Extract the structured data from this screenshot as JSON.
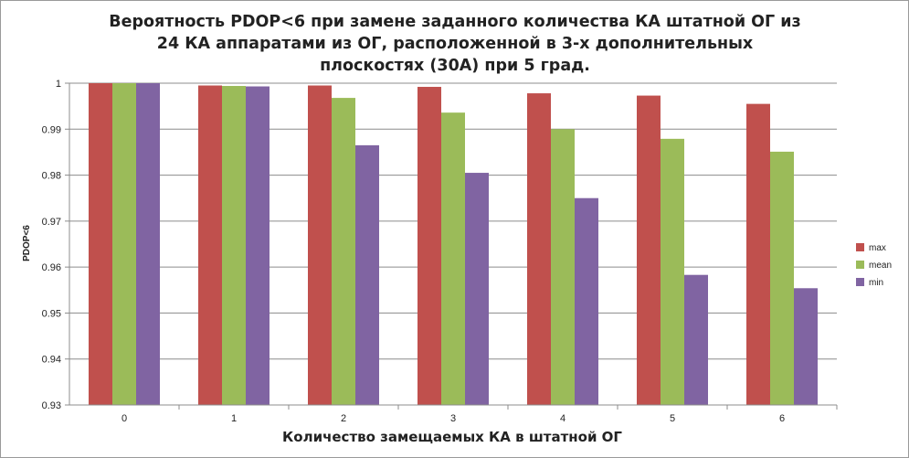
{
  "chart_data": {
    "type": "bar",
    "title_lines": [
      "Вероятность PDOP<6 при замене заданного количества КА штатной ОГ из",
      "24 КА аппаратами из ОГ, расположенной в 3-х дополнительных",
      "плоскостях  (30A) при 5 град."
    ],
    "xlabel": "Количество замещаемых КА в штатной  ОГ",
    "ylabel": "PDOP<6",
    "categories": [
      "0",
      "1",
      "2",
      "3",
      "4",
      "5",
      "6"
    ],
    "ylim": [
      0.93,
      1.0
    ],
    "yticks": [
      "0.93",
      "0.94",
      "0.95",
      "0.96",
      "0.97",
      "0.98",
      "0.99",
      "1"
    ],
    "grid": true,
    "legend_position": "right",
    "series": [
      {
        "name": "max",
        "color": "#c0504d",
        "values": [
          1.0,
          0.9995,
          0.9995,
          0.9992,
          0.9978,
          0.9973,
          0.9955
        ]
      },
      {
        "name": "mean",
        "color": "#9bbb59",
        "values": [
          1.0,
          0.9994,
          0.9968,
          0.9936,
          0.99,
          0.9879,
          0.9851
        ]
      },
      {
        "name": "min",
        "color": "#8064a2",
        "values": [
          1.0,
          0.9993,
          0.9865,
          0.9805,
          0.975,
          0.9583,
          0.9554
        ]
      }
    ]
  }
}
